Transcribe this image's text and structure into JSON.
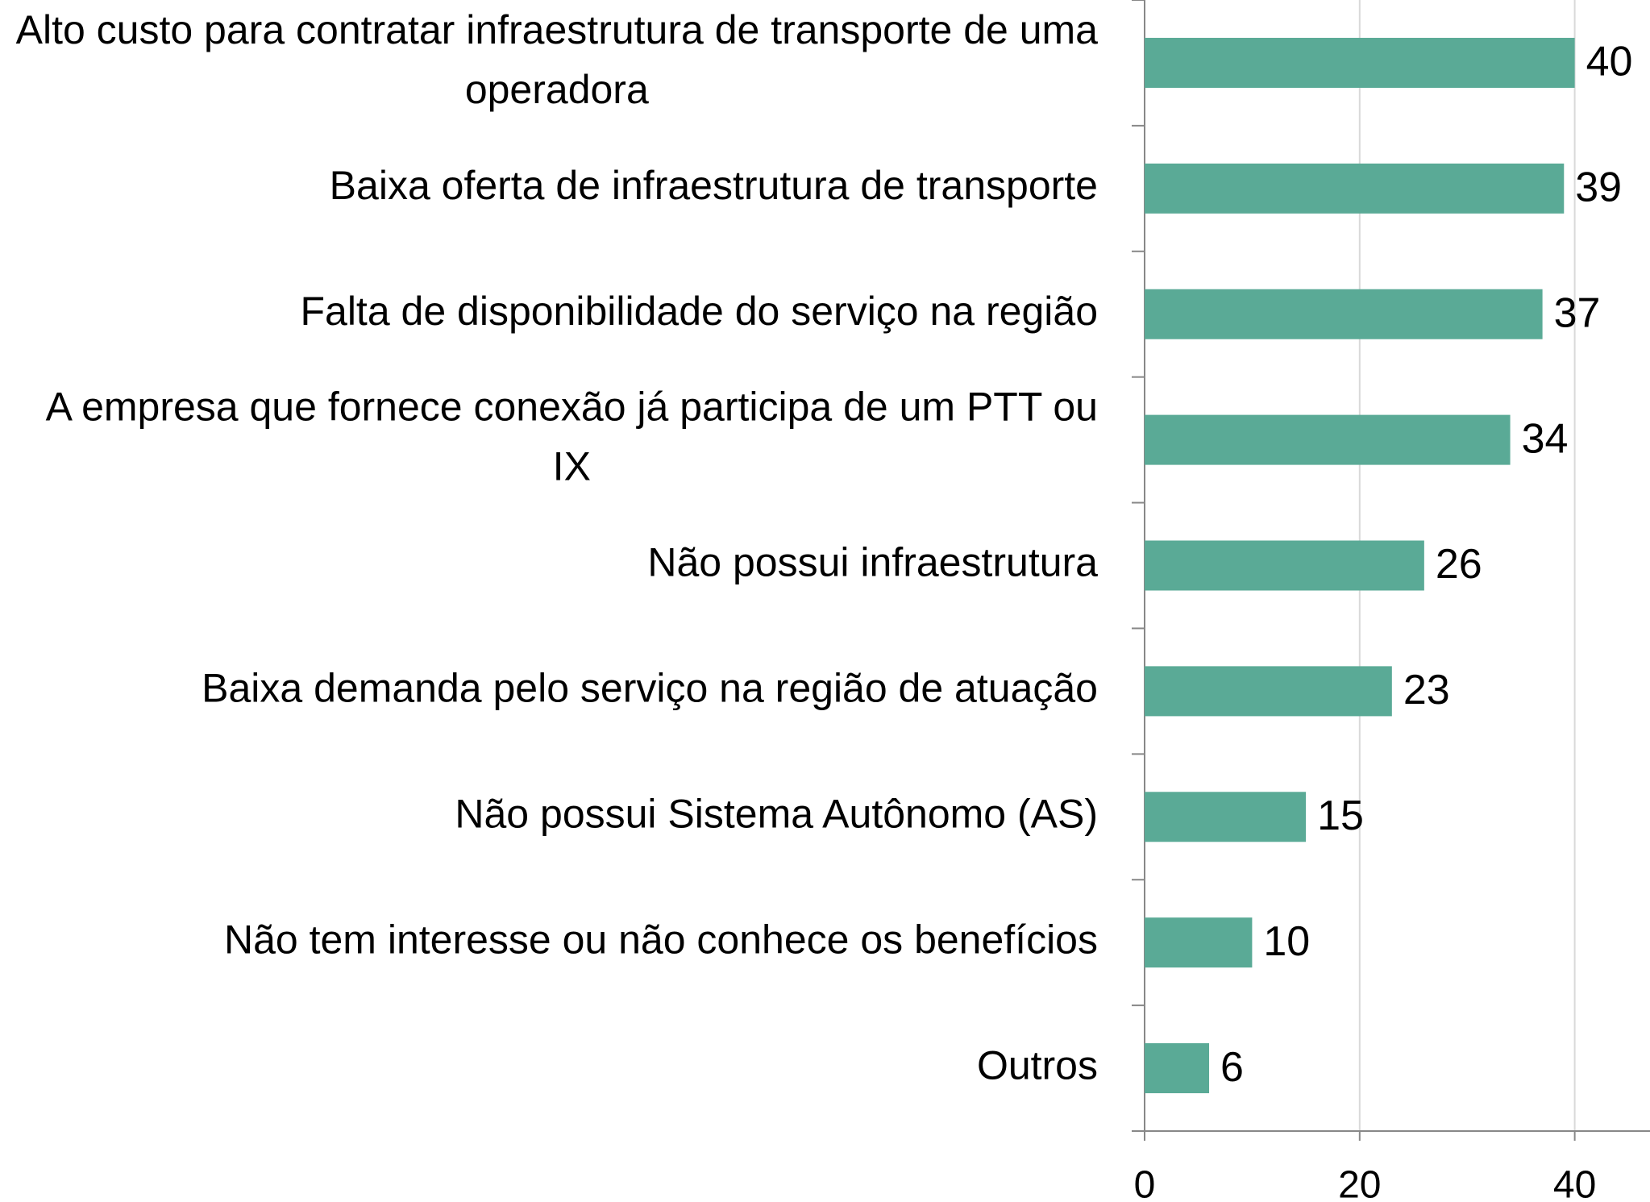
{
  "chart_data": {
    "type": "bar",
    "orientation": "horizontal",
    "categories": [
      "Alto custo para contratar infraestrutura de transporte de uma operadora",
      "Baixa oferta de infraestrutura de transporte",
      "Falta de disponibilidade do serviço na região",
      "A empresa que fornece conexão já participa de um PTT ou IX",
      "Não possui infraestrutura",
      "Baixa demanda pelo serviço na região de atuação",
      "Não possui Sistema Autônomo (AS)",
      "Não tem interesse ou não conhece os benefícios",
      "Outros"
    ],
    "values": [
      40,
      39,
      37,
      34,
      26,
      23,
      15,
      10,
      6
    ],
    "color": "#5aaa96",
    "xlim": [
      0,
      47
    ],
    "xticks": [
      0,
      20,
      40
    ],
    "grid": true
  }
}
